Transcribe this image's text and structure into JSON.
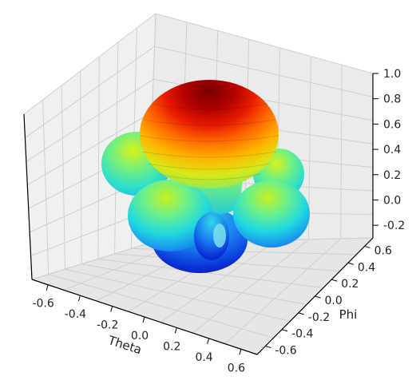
{
  "chart_data": {
    "type": "surface3d",
    "title": "",
    "xlabel": "Theta",
    "ylabel": "Phi",
    "zlabel": "",
    "x_ticks": [
      "-0.6",
      "-0.4",
      "-0.2",
      "0.0",
      "0.2",
      "0.4",
      "0.6"
    ],
    "y_ticks": [
      "-0.6",
      "-0.4",
      "-0.2",
      "0.0",
      "0.2",
      "0.4",
      "0.6"
    ],
    "z_ticks": [
      "-0.2",
      "0.0",
      "0.2",
      "0.4",
      "0.6",
      "0.8",
      "1.0"
    ],
    "xlim": [
      -0.7,
      0.7
    ],
    "ylim": [
      -0.7,
      0.7
    ],
    "zlim": [
      -0.3,
      1.0
    ],
    "grid": true,
    "colormap": "jet",
    "surface": "3D radiation pattern: dominant main lobe along +z (max value 1.0) with four smaller side lobes around it and minor back lobes below",
    "main_lobe_peak": 1.0
  }
}
